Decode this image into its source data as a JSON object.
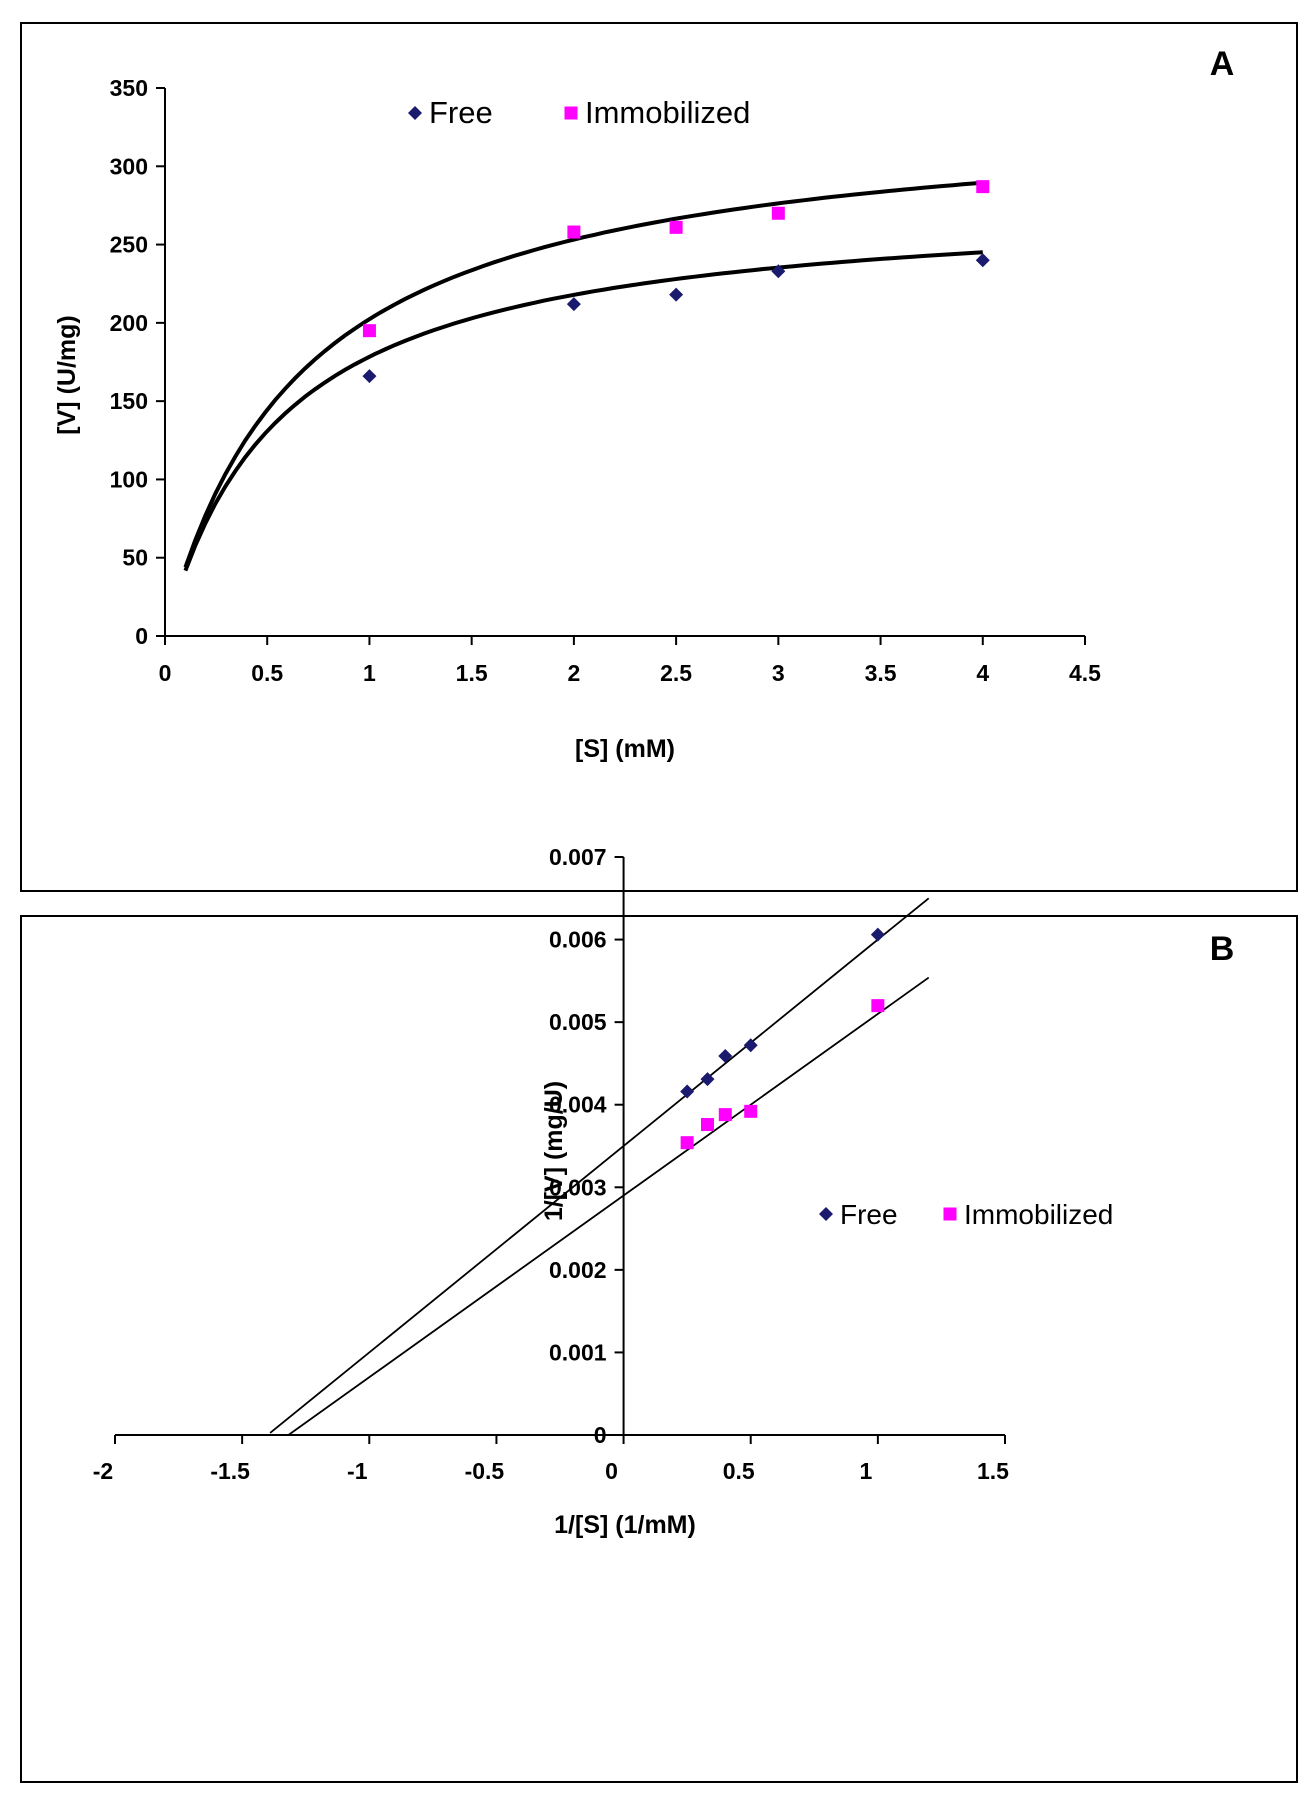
{
  "chart_data": [
    {
      "type": "scatter",
      "panel_label": "A",
      "xlabel": "[S] (mM)",
      "ylabel": "[V] (U/mg)",
      "xlim": [
        0,
        4.5
      ],
      "ylim": [
        0,
        350
      ],
      "x_ticks": [
        "0",
        "0.5",
        "1",
        "1.5",
        "2",
        "2.5",
        "3",
        "3.5",
        "4",
        "4.5"
      ],
      "y_ticks": [
        "0",
        "50",
        "100",
        "150",
        "200",
        "250",
        "300",
        "350"
      ],
      "grid": false,
      "legend_position": "top",
      "series": [
        {
          "name": "Free",
          "marker": "diamond",
          "color": "#1a1a6e",
          "x": [
            1,
            2,
            2.5,
            3,
            4
          ],
          "y": [
            166,
            212,
            218,
            233,
            240
          ],
          "fit": {
            "type": "michaelis-menten",
            "vmax": 280,
            "km": 0.57,
            "x_range": [
              0.1,
              4
            ]
          }
        },
        {
          "name": "Immobilized",
          "marker": "square",
          "color": "#ff00ff",
          "x": [
            1,
            2,
            2.5,
            3,
            4
          ],
          "y": [
            195,
            258,
            261,
            270,
            287
          ],
          "fit": {
            "type": "michaelis-menten",
            "vmax": 338,
            "km": 0.67,
            "x_range": [
              0.1,
              4
            ]
          }
        }
      ]
    },
    {
      "type": "scatter",
      "panel_label": "B",
      "xlabel": "1/[S] (1/mM)",
      "ylabel": "1/[V] (mg/U)",
      "xlim": [
        -2,
        1.5
      ],
      "ylim": [
        0,
        0.007
      ],
      "x_ticks": [
        "-2",
        "-1.5",
        "-1",
        "-0.5",
        "0",
        "0.5",
        "1",
        "1.5"
      ],
      "y_ticks": [
        "0",
        "0.001",
        "0.002",
        "0.003",
        "0.004",
        "0.005",
        "0.006",
        "0.007"
      ],
      "grid": false,
      "legend_position": "right",
      "series": [
        {
          "name": "Free",
          "marker": "diamond",
          "color": "#1a1a6e",
          "x": [
            0.25,
            0.33,
            0.4,
            0.5,
            1
          ],
          "y": [
            0.00416,
            0.00431,
            0.00459,
            0.00472,
            0.00606
          ],
          "fit": {
            "type": "linear",
            "slope": 0.0025,
            "intercept": 0.0035,
            "x_range": [
              -1.39,
              1.2
            ]
          }
        },
        {
          "name": "Immobilized",
          "marker": "square",
          "color": "#ff00ff",
          "x": [
            0.25,
            0.33,
            0.4,
            0.5,
            1
          ],
          "y": [
            0.00354,
            0.00376,
            0.00388,
            0.00392,
            0.0052
          ],
          "fit": {
            "type": "linear",
            "slope": 0.0022,
            "intercept": 0.0029,
            "x_range": [
              -1.32,
              1.2
            ]
          }
        }
      ]
    }
  ]
}
